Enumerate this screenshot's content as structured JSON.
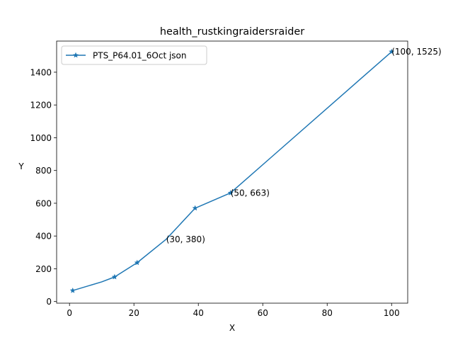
{
  "chart_data": {
    "type": "line",
    "title": "health_rustkingraidersraider",
    "xlabel": "X",
    "ylabel": "Y",
    "xlim": [
      -4,
      105
    ],
    "ylim": [
      -10,
      1590
    ],
    "xticks": [
      0,
      20,
      40,
      60,
      80,
      100
    ],
    "yticks": [
      0,
      200,
      400,
      600,
      800,
      1000,
      1200,
      1400
    ],
    "grid": false,
    "legend_position": "top-left",
    "series": [
      {
        "name": "PTS_P64.01_6Oct json",
        "color": "#1f77b4",
        "marker": "star",
        "x": [
          1,
          10,
          14,
          21,
          30,
          39,
          50,
          100
        ],
        "y": [
          67,
          120,
          150,
          237,
          380,
          570,
          663,
          1525
        ],
        "marker_x": [
          1,
          14,
          21,
          39,
          50,
          100
        ],
        "marker_y": [
          67,
          150,
          237,
          570,
          663,
          1525
        ]
      }
    ],
    "annotations": [
      {
        "x": 30,
        "y": 380,
        "text": "(30, 380)"
      },
      {
        "x": 50,
        "y": 663,
        "text": "(50, 663)"
      },
      {
        "x": 100,
        "y": 1525,
        "text": "(100, 1525)"
      }
    ]
  }
}
